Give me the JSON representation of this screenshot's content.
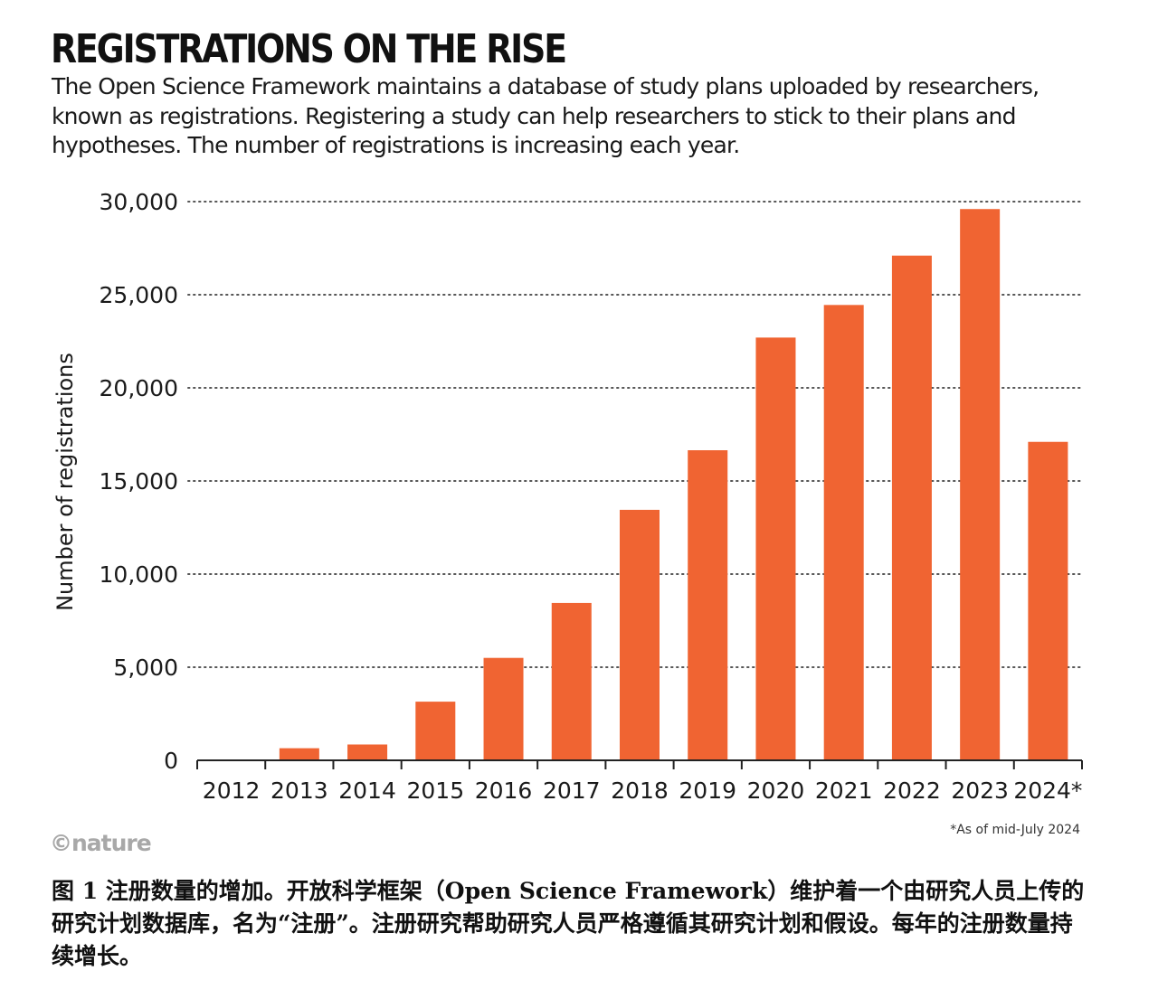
{
  "chart_data": {
    "type": "bar",
    "title": "REGISTRATIONS ON THE RISE",
    "subtitle": "The Open Science Framework maintains a database of study plans uploaded by researchers, known as registrations. Registering a study can help researchers to stick to their plans and hypotheses. The number of registrations is increasing each year.",
    "ylabel": "Number of registrations",
    "xlabel": "",
    "ylim": [
      0,
      30000
    ],
    "yticks": [
      0,
      5000,
      10000,
      15000,
      20000,
      25000,
      30000
    ],
    "ytick_labels": [
      "0",
      "5,000",
      "10,000",
      "15,000",
      "20,000",
      "25,000",
      "30,000"
    ],
    "grid": "horizontal dotted",
    "categories": [
      "2012",
      "2013",
      "2014",
      "2015",
      "2016",
      "2017",
      "2018",
      "2019",
      "2020",
      "2021",
      "2022",
      "2023",
      "2024*"
    ],
    "values": [
      0,
      650,
      850,
      3150,
      5500,
      8450,
      13450,
      16650,
      22700,
      24450,
      27100,
      29600,
      17100
    ],
    "bar_color": "#f06432",
    "note": "*As of mid-July 2024"
  },
  "branding": {
    "logo": "©nature"
  },
  "caption": "图 1  注册数量的增加。开放科学框架（Open Science Framework）维护着一个由研究人员上传的研究计划数据库，名为“注册”。注册研究帮助研究人员严格遵循其研究计划和假设。每年的注册数量持续增长。"
}
